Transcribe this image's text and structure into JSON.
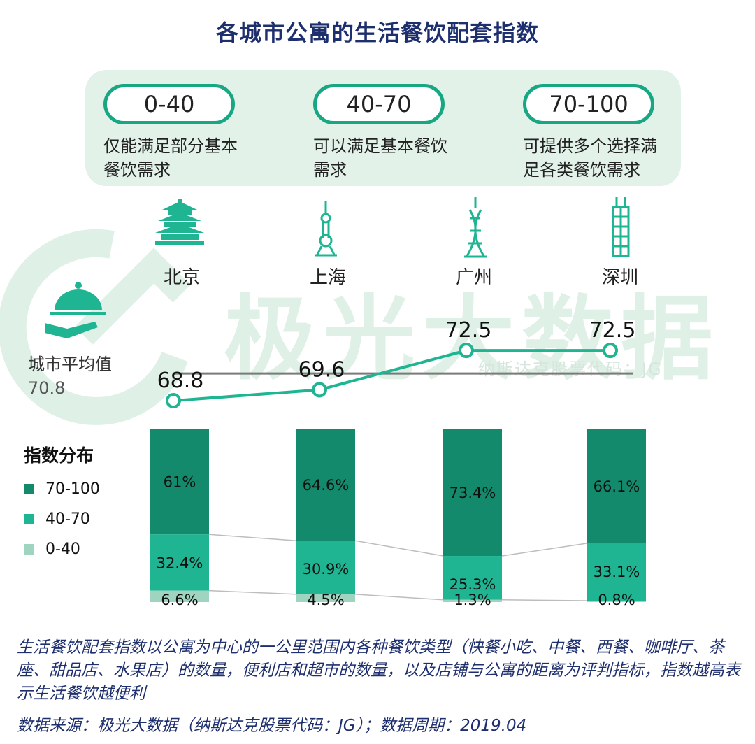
{
  "title": "各城市公寓的生活餐饮配套指数",
  "ranges": [
    {
      "label": "0-40",
      "desc_line1": "仅能满足部分基本",
      "desc_line2": "餐饮需求"
    },
    {
      "label": "40-70",
      "desc_line1": "可以满足基本餐饮",
      "desc_line2": "需求"
    },
    {
      "label": "70-100",
      "desc_line1": "可提供多个选择满",
      "desc_line2": "足各类餐饮需求"
    }
  ],
  "watermark": {
    "text": "极光大数据",
    "sub": "纳斯达克股票代码：JG"
  },
  "average": {
    "label": "城市平均值",
    "value": "70.8"
  },
  "distribution_legend": {
    "title": "指数分布",
    "items": [
      {
        "label": "70-100",
        "color": "#138a6c"
      },
      {
        "label": "40-70",
        "color": "#1fb592"
      },
      {
        "label": "0-40",
        "color": "#9fd4c0"
      }
    ]
  },
  "chart_data": [
    {
      "type": "line",
      "categories": [
        "北京",
        "上海",
        "广州",
        "深圳"
      ],
      "series": [
        {
          "values": [
            68.8,
            69.6,
            72.5,
            72.5
          ]
        }
      ],
      "value_labels": [
        "68.8",
        "69.6",
        "72.5",
        "72.5"
      ],
      "reference_line": {
        "label": "城市平均值",
        "value": 70.8
      },
      "ylim": [
        67,
        74
      ],
      "colors": {
        "line": "#1fb592",
        "reference": "#7a7a7a"
      }
    },
    {
      "type": "bar",
      "stacked": true,
      "normalized": true,
      "title": "指数分布",
      "categories": [
        "北京",
        "上海",
        "广州",
        "深圳"
      ],
      "series": [
        {
          "name": "70-100",
          "values": [
            61,
            64.6,
            73.4,
            66.1
          ],
          "labels": [
            "61%",
            "64.6%",
            "73.4%",
            "66.1%"
          ],
          "color": "#138a6c"
        },
        {
          "name": "40-70",
          "values": [
            32.4,
            30.9,
            25.3,
            33.1
          ],
          "labels": [
            "32.4%",
            "30.9%",
            "25.3%",
            "33.1%"
          ],
          "color": "#1fb592"
        },
        {
          "name": "0-40",
          "values": [
            6.6,
            4.5,
            1.3,
            0.8
          ],
          "labels": [
            "6.6%",
            "4.5%",
            "1.3%",
            "0.8%"
          ],
          "color": "#9fd4c0"
        }
      ],
      "ylim": [
        0,
        100
      ]
    }
  ],
  "footnote": "生活餐饮配套指数以公寓为中心的一公里范围内各种餐饮类型（快餐小吃、中餐、西餐、咖啡厅、茶座、甜品店、水果店）的数量，便利店和超市的数量，以及店铺与公寓的距离为评判指标，指数越高表示生活餐饮越便利",
  "source": "数据来源：极光大数据（纳斯达克股票代码：JG）；数据周期：2019.04"
}
